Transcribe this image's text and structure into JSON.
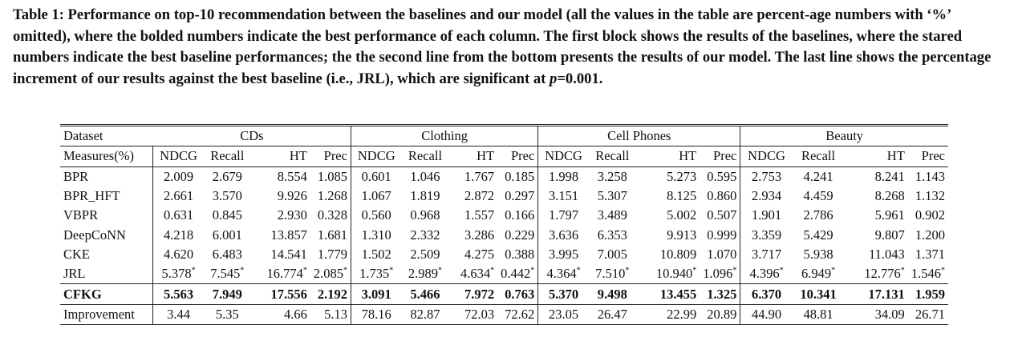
{
  "caption": {
    "table_label": "Table 1:",
    "text_part1": "Performance on top-10 recommendation between the baselines and our model (all the values in the table are percent-age numbers with ‘%’ omitted), where the bolded numbers indicate the best performance of each column. The first block shows the results of the baselines, where the stared numbers indicate the best baseline performances; the the second line from the bottom presents the results of our model. The last line shows the percentage increment of our results against the best baseline (i.e., JRL), which are significant at",
    "p_symbol": "p",
    "text_part2": "=0.001."
  },
  "table": {
    "dataset_label": "Dataset",
    "measures_label": "Measures(%)",
    "datasets": [
      "CDs",
      "Clothing",
      "Cell Phones",
      "Beauty"
    ],
    "metrics": [
      "NDCG",
      "Recall",
      "HT",
      "Prec"
    ],
    "star": "*",
    "rows": [
      {
        "name": "BPR",
        "values": [
          "2.009",
          "2.679",
          "8.554",
          "1.085",
          "0.601",
          "1.046",
          "1.767",
          "0.185",
          "1.998",
          "3.258",
          "5.273",
          "0.595",
          "2.753",
          "4.241",
          "8.241",
          "1.143"
        ]
      },
      {
        "name": "BPR_HFT",
        "values": [
          "2.661",
          "3.570",
          "9.926",
          "1.268",
          "1.067",
          "1.819",
          "2.872",
          "0.297",
          "3.151",
          "5.307",
          "8.125",
          "0.860",
          "2.934",
          "4.459",
          "8.268",
          "1.132"
        ]
      },
      {
        "name": "VBPR",
        "values": [
          "0.631",
          "0.845",
          "2.930",
          "0.328",
          "0.560",
          "0.968",
          "1.557",
          "0.166",
          "1.797",
          "3.489",
          "5.002",
          "0.507",
          "1.901",
          "2.786",
          "5.961",
          "0.902"
        ]
      },
      {
        "name": "DeepCoNN",
        "values": [
          "4.218",
          "6.001",
          "13.857",
          "1.681",
          "1.310",
          "2.332",
          "3.286",
          "0.229",
          "3.636",
          "6.353",
          "9.913",
          "0.999",
          "3.359",
          "5.429",
          "9.807",
          "1.200"
        ]
      },
      {
        "name": "CKE",
        "values": [
          "4.620",
          "6.483",
          "14.541",
          "1.779",
          "1.502",
          "2.509",
          "4.275",
          "0.388",
          "3.995",
          "7.005",
          "10.809",
          "1.070",
          "3.717",
          "5.938",
          "11.043",
          "1.371"
        ]
      },
      {
        "name": "JRL",
        "values": [
          "5.378",
          "7.545",
          "16.774",
          "2.085",
          "1.735",
          "2.989",
          "4.634",
          "0.442",
          "4.364",
          "7.510",
          "10.940",
          "1.096",
          "4.396",
          "6.949",
          "12.776",
          "1.546"
        ]
      }
    ],
    "model_row": {
      "name": "CFKG",
      "values": [
        "5.563",
        "7.949",
        "17.556",
        "2.192",
        "3.091",
        "5.466",
        "7.972",
        "0.763",
        "5.370",
        "9.498",
        "13.455",
        "1.325",
        "6.370",
        "10.341",
        "17.131",
        "1.959"
      ]
    },
    "improvement_row": {
      "name": "Improvement",
      "values": [
        "3.44",
        "5.35",
        "4.66",
        "5.13",
        "78.16",
        "82.87",
        "72.03",
        "72.62",
        "23.05",
        "26.47",
        "22.99",
        "20.89",
        "44.90",
        "48.81",
        "34.09",
        "26.71"
      ]
    }
  }
}
